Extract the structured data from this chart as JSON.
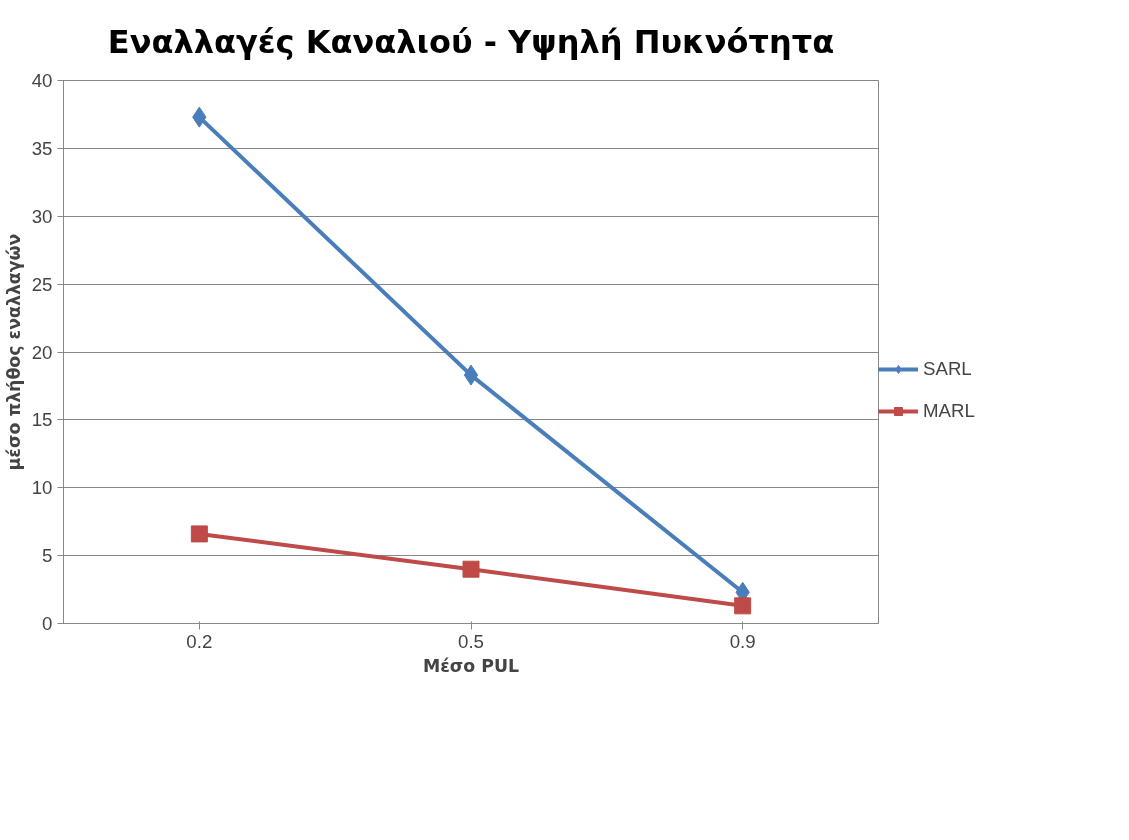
{
  "chart_data": {
    "type": "line",
    "title": "Εναλλαγές Καναλιού - Υψηλή Πυκνότητα",
    "xlabel": "Μέσο PUL",
    "ylabel": "μέσο πλήθος εναλλαγών",
    "categories": [
      "0.2",
      "0.5",
      "0.9"
    ],
    "series": [
      {
        "name": "SARL",
        "color": "#4a7ebb",
        "marker": "diamond",
        "values": [
          37.3,
          18.3,
          2.3
        ]
      },
      {
        "name": "MARL",
        "color": "#be4b48",
        "marker": "square",
        "values": [
          6.6,
          4.0,
          1.3
        ]
      }
    ],
    "ylim": [
      0,
      40
    ],
    "yticks": [
      0,
      5,
      10,
      15,
      20,
      25,
      30,
      35,
      40
    ],
    "grid": "y",
    "legend": "right",
    "line_style": "solid"
  }
}
